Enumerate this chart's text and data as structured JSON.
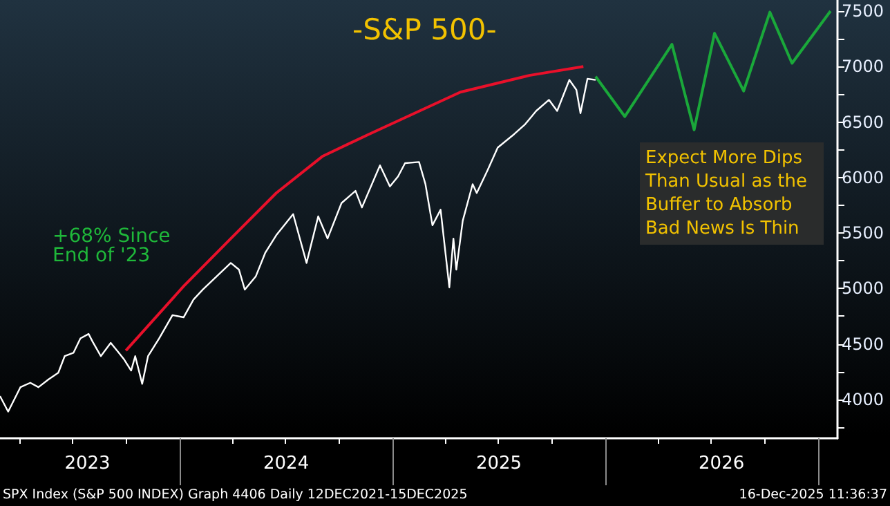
{
  "chart_data": {
    "type": "line",
    "title": "-S&P 500-",
    "x": [
      "2023-02-27",
      "2023-03-13",
      "2023-04-03",
      "2023-04-20",
      "2023-05-04",
      "2023-05-21",
      "2023-06-07",
      "2023-06-18",
      "2023-07-03",
      "2023-07-15",
      "2023-07-29",
      "2023-08-05",
      "2023-08-19",
      "2023-09-05",
      "2023-09-19",
      "2023-09-28",
      "2023-10-10",
      "2023-10-17",
      "2023-10-29",
      "2023-11-08",
      "2023-11-27",
      "2023-12-20",
      "2024-01-08",
      "2024-01-25",
      "2024-02-10",
      "2024-03-05",
      "2024-03-29",
      "2024-04-12",
      "2024-04-22",
      "2024-05-11",
      "2024-05-27",
      "2024-06-15",
      "2024-07-14",
      "2024-08-06",
      "2024-08-26",
      "2024-09-11",
      "2024-10-05",
      "2024-10-29",
      "2024-11-09",
      "2024-12-10",
      "2024-12-27",
      "2025-01-10",
      "2025-01-22",
      "2025-02-15",
      "2025-02-26",
      "2025-03-10",
      "2025-03-24",
      "2025-04-08",
      "2025-04-15",
      "2025-04-20",
      "2025-05-01",
      "2025-05-18",
      "2025-05-25",
      "2025-06-13",
      "2025-06-30",
      "2025-07-28",
      "2025-08-16",
      "2025-09-04",
      "2025-09-26",
      "2025-10-10",
      "2025-10-31",
      "2025-11-12",
      "2025-11-19",
      "2025-12-01",
      "2025-12-15"
    ],
    "series": [
      {
        "color": "#ffffff",
        "values": [
          4030,
          3890,
          4110,
          4150,
          4110,
          4180,
          4240,
          4390,
          4420,
          4550,
          4590,
          4520,
          4390,
          4510,
          4420,
          4360,
          4260,
          4390,
          4140,
          4390,
          4550,
          4760,
          4740,
          4900,
          4990,
          5110,
          5230,
          5170,
          4990,
          5110,
          5320,
          5480,
          5670,
          5230,
          5650,
          5450,
          5770,
          5880,
          5730,
          6110,
          5920,
          6010,
          6130,
          6140,
          5940,
          5570,
          5710,
          5010,
          5450,
          5170,
          5610,
          5940,
          5860,
          6070,
          6270,
          6390,
          6480,
          6600,
          6700,
          6600,
          6880,
          6790,
          6580,
          6890,
          6880
        ]
      },
      {
        "color": "#e8102a",
        "x": [
          "2023-10-01",
          "2024-01-08",
          "2024-03-29",
          "2024-06-15",
          "2024-09-02",
          "2024-11-21",
          "2025-04-27",
          "2025-08-23",
          "2025-11-24"
        ],
        "values": [
          4440,
          5020,
          5450,
          5860,
          6190,
          6390,
          6770,
          6920,
          7000
        ]
      },
      {
        "color": "#1aa83a",
        "x": [
          "2025-12-15",
          "2026-02-03",
          "2026-04-25",
          "2026-06-02",
          "2026-07-07",
          "2026-08-26",
          "2026-10-10",
          "2026-11-17",
          "2027-01-22"
        ],
        "values": [
          6910,
          6550,
          7200,
          6430,
          7300,
          6780,
          7490,
          7030,
          7500
        ]
      }
    ],
    "xlim": [
      "2023-02-27",
      "2027-02-03"
    ],
    "xticks": [
      {
        "value": "2023-04-01",
        "label": null
      },
      {
        "value": "2023-07-01",
        "label": null
      },
      {
        "value": "2023-07-27",
        "label": "2023"
      },
      {
        "value": "2023-10-01",
        "label": null
      },
      {
        "value": "2024-01-01",
        "label": null
      },
      {
        "value": "2024-04-01",
        "label": null
      },
      {
        "value": "2024-07-01",
        "label": null
      },
      {
        "value": "2024-07-02",
        "label": "2024"
      },
      {
        "value": "2024-10-01",
        "label": null
      },
      {
        "value": "2025-01-01",
        "label": null
      },
      {
        "value": "2025-04-01",
        "label": null
      },
      {
        "value": "2025-07-01",
        "label": null
      },
      {
        "value": "2025-07-02",
        "label": "2025"
      },
      {
        "value": "2025-10-01",
        "label": null
      },
      {
        "value": "2026-01-01",
        "label": null
      },
      {
        "value": "2026-04-01",
        "label": null
      },
      {
        "value": "2026-07-01",
        "label": null
      },
      {
        "value": "2026-07-19",
        "label": "2026"
      },
      {
        "value": "2026-10-01",
        "label": null
      },
      {
        "value": "2027-01-01",
        "label": null
      }
    ],
    "ylim": [
      3650,
      7600
    ],
    "yticks": [
      {
        "value": 3750,
        "label": null
      },
      4000,
      {
        "value": 4250,
        "label": null
      },
      4500,
      {
        "value": 4750,
        "label": null
      },
      5000,
      {
        "value": 5250,
        "label": null
      },
      5500,
      {
        "value": 5750,
        "label": null
      },
      6000,
      {
        "value": 6250,
        "label": null
      },
      6500,
      {
        "value": 6750,
        "label": null
      },
      7000,
      {
        "value": 7250,
        "label": null
      },
      7500
    ],
    "grid": false,
    "marker": "none",
    "line_style": "solid",
    "annotations": [
      "+68% Since End of '23",
      "Expect More Dips Than Usual as the Buffer to Absorb Bad News Is Thin",
      "SPX Index (S&P 500 INDEX) Graph 4406 Daily 12DEC2021-15DEC2025",
      "16-Dec-2025 11:36:37"
    ]
  }
}
